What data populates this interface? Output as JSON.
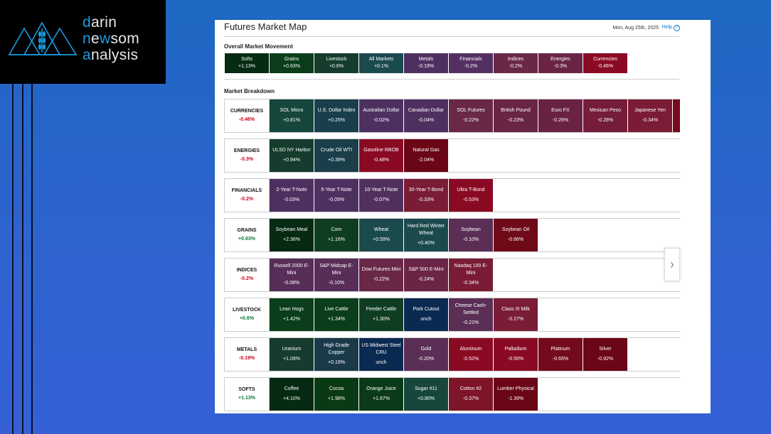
{
  "logo": {
    "line1a": "d",
    "line1b": "arin",
    "line2a": "n",
    "line2b": "e",
    "line2c": "w",
    "line2d": "som",
    "line3a": "a",
    "line3b": "nalysis"
  },
  "header": {
    "title": "Futures Market Map",
    "date": "Mon, Aug 25th, 2025",
    "help": "Help"
  },
  "overall": {
    "heading": "Overall Market Movement",
    "tiles": [
      {
        "name": "Softs",
        "value": "+1.13%",
        "color": "#062a12"
      },
      {
        "name": "Grains",
        "value": "+0.63%",
        "color": "#0a3d1a"
      },
      {
        "name": "Livestock",
        "value": "+0.6%",
        "color": "#153c2c"
      },
      {
        "name": "All Markets",
        "value": "+0.1%",
        "color": "#1b4a4c"
      },
      {
        "name": "Metals",
        "value": "-0.19%",
        "color": "#4e3060"
      },
      {
        "name": "Financials",
        "value": "-0.2%",
        "color": "#543062"
      },
      {
        "name": "Indices",
        "value": "-0.2%",
        "color": "#6a2848"
      },
      {
        "name": "Energies",
        "value": "-0.3%",
        "color": "#6a2444"
      },
      {
        "name": "Currencies",
        "value": "-0.46%",
        "color": "#8a0a24"
      }
    ]
  },
  "breakdown": {
    "heading": "Market Breakdown",
    "groups": [
      {
        "name": "CURRENCIES",
        "value": "-0.46%",
        "sign": "neg",
        "tiles": [
          {
            "name": "SOL Micro",
            "value": "+0.81%",
            "color": "#16463c"
          },
          {
            "name": "U.S. Dollar Index",
            "value": "+0.25%",
            "color": "#1a3e4c"
          },
          {
            "name": "Australian Dollar",
            "value": "-0.02%",
            "color": "#4e3060"
          },
          {
            "name": "Canadian Dollar",
            "value": "-0.04%",
            "color": "#4e3060"
          },
          {
            "name": "SOL Futures",
            "value": "-0.22%",
            "color": "#6a2848"
          },
          {
            "name": "British Pound",
            "value": "-0.23%",
            "color": "#6a2446"
          },
          {
            "name": "Euro FX",
            "value": "-0.26%",
            "color": "#6a2244"
          },
          {
            "name": "Mexican Peso",
            "value": "-0.28%",
            "color": "#741c3a"
          },
          {
            "name": "Japanese Yen",
            "value": "-0.34%",
            "color": "#7a1c35"
          },
          {
            "name": "",
            "value": "",
            "color": "#7a0a20"
          }
        ]
      },
      {
        "name": "ENERGIES",
        "value": "-0.3%",
        "sign": "neg",
        "tiles": [
          {
            "name": "ULSD NY Harbor",
            "value": "+0.94%",
            "color": "#153c2c"
          },
          {
            "name": "Crude Oil WTI",
            "value": "+0.39%",
            "color": "#1a3e4a"
          },
          {
            "name": "Gasoline RBOB",
            "value": "-0.48%",
            "color": "#8a0a24"
          },
          {
            "name": "Natural Gas",
            "value": "-2.04%",
            "color": "#6a0616"
          }
        ]
      },
      {
        "name": "FINANCIALS",
        "value": "-0.2%",
        "sign": "neg",
        "tiles": [
          {
            "name": "2-Year T-Note",
            "value": "-0.03%",
            "color": "#4e3060"
          },
          {
            "name": "5-Year T-Note",
            "value": "-0.05%",
            "color": "#4e3060"
          },
          {
            "name": "10-Year T-Note",
            "value": "-0.07%",
            "color": "#52305e"
          },
          {
            "name": "30-Year T-Bond",
            "value": "-0.33%",
            "color": "#7a1c35"
          },
          {
            "name": "Ultra T-Bond",
            "value": "-0.53%",
            "color": "#8a0a24"
          }
        ]
      },
      {
        "name": "GRAINS",
        "value": "+0.63%",
        "sign": "pos",
        "tiles": [
          {
            "name": "Soybean Meal",
            "value": "+2.36%",
            "color": "#062a12"
          },
          {
            "name": "Corn",
            "value": "+1.16%",
            "color": "#0f3d22"
          },
          {
            "name": "Wheat",
            "value": "+0.59%",
            "color": "#1b4a4c"
          },
          {
            "name": "Hard Red Winter Wheat",
            "value": "+0.40%",
            "color": "#1b4a4c"
          },
          {
            "name": "Soybean",
            "value": "-0.10%",
            "color": "#5a2e55"
          },
          {
            "name": "Soybean Oil",
            "value": "-0.66%",
            "color": "#6f0a18"
          }
        ]
      },
      {
        "name": "INDICES",
        "value": "-0.2%",
        "sign": "neg",
        "tiles": [
          {
            "name": "Russell 2000 E-Mini",
            "value": "-0.08%",
            "color": "#582e58"
          },
          {
            "name": "S&P Midcap E-Mini",
            "value": "-0.10%",
            "color": "#582e58"
          },
          {
            "name": "Dow Futures Mini",
            "value": "-0.22%",
            "color": "#6a2848"
          },
          {
            "name": "S&P 500 E-Mini",
            "value": "-0.24%",
            "color": "#6a2446"
          },
          {
            "name": "Nasdaq 100 E-Mini",
            "value": "-0.34%",
            "color": "#7a1c35"
          }
        ]
      },
      {
        "name": "LIVESTOCK",
        "value": "+0.6%",
        "sign": "pos",
        "tiles": [
          {
            "name": "Lean Hogs",
            "value": "+1.42%",
            "color": "#0a3d1a"
          },
          {
            "name": "Live Cattle",
            "value": "+1.34%",
            "color": "#0a3d1a"
          },
          {
            "name": "Feeder Cattle",
            "value": "+1.30%",
            "color": "#0f3d22"
          },
          {
            "name": "Pork Cutout",
            "value": "unch",
            "color": "#0b2a52"
          },
          {
            "name": "Cheese Cash-Settled",
            "value": "-0.21%",
            "color": "#5a2e55"
          },
          {
            "name": "Class III Milk",
            "value": "-0.27%",
            "color": "#7a1c35"
          }
        ]
      },
      {
        "name": "METALS",
        "value": "-0.19%",
        "sign": "neg",
        "tiles": [
          {
            "name": "Uranium",
            "value": "+1.09%",
            "color": "#153c2c"
          },
          {
            "name": "High Grade Copper",
            "value": "+0.19%",
            "color": "#1a3a4a"
          },
          {
            "name": "US Midwest Steel CRU",
            "value": "unch",
            "color": "#0b2a52"
          },
          {
            "name": "Gold",
            "value": "-0.20%",
            "color": "#5a2e55"
          },
          {
            "name": "Aluminum",
            "value": "-0.52%",
            "color": "#8a0a24"
          },
          {
            "name": "Palladium",
            "value": "-0.55%",
            "color": "#8a0a24"
          },
          {
            "name": "Platinum",
            "value": "-0.65%",
            "color": "#740a1c"
          },
          {
            "name": "Silver",
            "value": "-0.92%",
            "color": "#6a0616"
          }
        ]
      },
      {
        "name": "SOFTS",
        "value": "+1.13%",
        "sign": "pos",
        "tiles": [
          {
            "name": "Coffee",
            "value": "+4.10%",
            "color": "#062a12"
          },
          {
            "name": "Cocoa",
            "value": "+1.98%",
            "color": "#0a3a14"
          },
          {
            "name": "Orange Juice",
            "value": "+1.67%",
            "color": "#0a3a18"
          },
          {
            "name": "Sugar #11",
            "value": "+0.80%",
            "color": "#16463c"
          },
          {
            "name": "Cotton #2",
            "value": "-0.37%",
            "color": "#7e1428"
          },
          {
            "name": "Lumber Physical",
            "value": "-1.39%",
            "color": "#6a0616"
          }
        ]
      }
    ]
  },
  "next_icon": "chevron-right-icon"
}
